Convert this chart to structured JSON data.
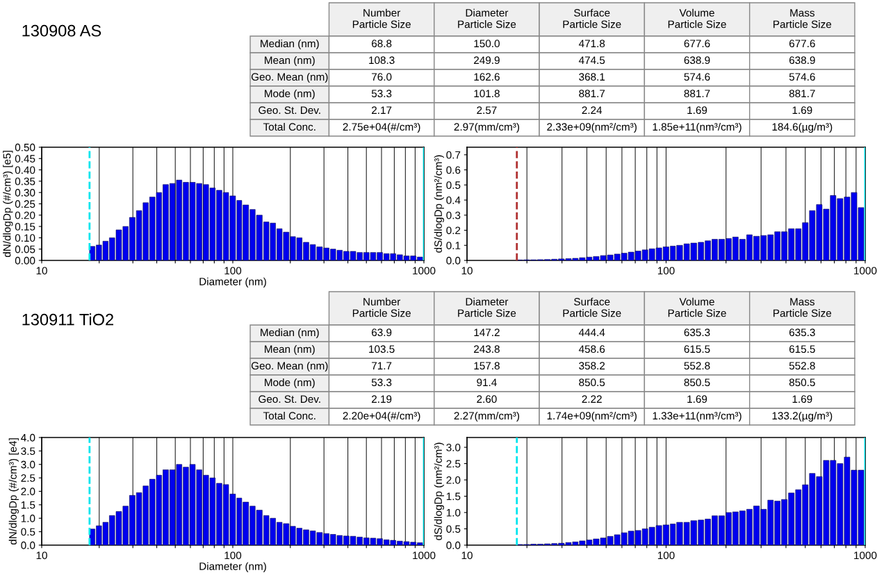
{
  "chart_data": [
    {
      "type": "other",
      "title": "130908 AS",
      "categories": [
        "Number\nParticle Size",
        "Diameter\nParticle Size",
        "Surface\nParticle Size",
        "Volume\nParticle Size",
        "Mass\nParticle Size"
      ],
      "y_categories": [
        "Median (nm)",
        "Mean (nm)",
        "Geo. Mean (nm)",
        "Mode (nm)",
        "Geo. St. Dev.",
        "Total Conc."
      ],
      "cell_labels": [
        [
          "68.8",
          "150.0",
          "471.8",
          "677.6",
          "677.6"
        ],
        [
          "108.3",
          "249.9",
          "474.5",
          "638.9",
          "638.9"
        ],
        [
          "76.0",
          "162.6",
          "368.1",
          "574.6",
          "574.6"
        ],
        [
          "53.3",
          "101.8",
          "881.7",
          "881.7",
          "881.7"
        ],
        [
          "2.17",
          "2.57",
          "2.24",
          "1.69",
          "1.69"
        ],
        [
          "2.75e+04(#/cm³)",
          "2.97(mm/cm³)",
          "2.33e+09(nm²/cm³)",
          "1.85e+11(nm³/cm³)",
          "184.6(µg/m³)"
        ]
      ]
    },
    {
      "type": "histogram",
      "xlabel": "Diameter (nm)",
      "ylabel": "dN/dlogDp (#/cm³) [e5]",
      "log": "x",
      "color": "#0000ee",
      "grid": "x",
      "bins": [
        17.8,
        19.3,
        20.9,
        22.6,
        24.5,
        26.6,
        28.8,
        31.3,
        33.9,
        36.7,
        39.8,
        43.1,
        46.8,
        50.7,
        55.0,
        59.6,
        64.6,
        70.0,
        75.9,
        82.2,
        89.1,
        96.6,
        105,
        113,
        123,
        133,
        145,
        157,
        170,
        184,
        200,
        216,
        234,
        254,
        275,
        299,
        324,
        351,
        380,
        412,
        447,
        484,
        525,
        569,
        617,
        668,
        724,
        785,
        851,
        923,
        1000
      ],
      "values": [
        0.062,
        0.068,
        0.085,
        0.1,
        0.135,
        0.15,
        0.19,
        0.22,
        0.255,
        0.28,
        0.3,
        0.335,
        0.34,
        0.355,
        0.345,
        0.345,
        0.34,
        0.335,
        0.32,
        0.31,
        0.3,
        0.285,
        0.265,
        0.245,
        0.225,
        0.2,
        0.17,
        0.165,
        0.14,
        0.125,
        0.105,
        0.1,
        0.08,
        0.07,
        0.06,
        0.055,
        0.05,
        0.045,
        0.04,
        0.04,
        0.035,
        0.035,
        0.035,
        0.035,
        0.03,
        0.03,
        0.025,
        0.02,
        0.02,
        0.015
      ],
      "xlim": [
        10,
        1000
      ],
      "xticks": [
        10,
        {
          "value": 20,
          "label": null
        },
        {
          "value": 30,
          "label": null
        },
        {
          "value": 40,
          "label": null
        },
        {
          "value": 50,
          "label": null
        },
        {
          "value": 60,
          "label": null
        },
        {
          "value": 70,
          "label": null
        },
        {
          "value": 80,
          "label": null
        },
        {
          "value": 90,
          "label": null
        },
        100,
        {
          "value": 200,
          "label": null
        },
        {
          "value": 300,
          "label": null
        },
        {
          "value": 400,
          "label": null
        },
        {
          "value": 500,
          "label": null
        },
        {
          "value": 600,
          "label": null
        },
        {
          "value": 700,
          "label": null
        },
        {
          "value": 800,
          "label": null
        },
        {
          "value": 900,
          "label": null
        },
        1000
      ],
      "ylim": [
        0,
        0.5
      ],
      "yticks": [
        {
          "value": 0,
          "label": "0.00"
        },
        0.05,
        {
          "value": 0.1,
          "label": "0.10"
        },
        0.15,
        {
          "value": 0.2,
          "label": "0.20"
        },
        0.25,
        {
          "value": 0.3,
          "label": "0.30"
        },
        0.35,
        {
          "value": 0.4,
          "label": "0.40"
        },
        0.45,
        {
          "value": 0.5,
          "label": "0.50"
        }
      ],
      "ref_lines": [
        {
          "axis": "x",
          "value": 17.8,
          "color": "#00e5ee",
          "line_style": "dashed"
        },
        {
          "axis": "x",
          "value": 1000,
          "color": "#00e5ee",
          "line_style": "solid"
        }
      ]
    },
    {
      "type": "histogram",
      "ylabel": "dS/dlogDp (nm²/cm³)",
      "log": "x",
      "color": "#0000ee",
      "grid": "x",
      "bins": [
        17.8,
        19.3,
        20.9,
        22.6,
        24.5,
        26.6,
        28.8,
        31.3,
        33.9,
        36.7,
        39.8,
        43.1,
        46.8,
        50.7,
        55.0,
        59.6,
        64.6,
        70.0,
        75.9,
        82.2,
        89.1,
        96.6,
        105,
        113,
        123,
        133,
        145,
        157,
        170,
        184,
        200,
        216,
        234,
        254,
        275,
        299,
        324,
        351,
        380,
        412,
        447,
        484,
        525,
        569,
        617,
        668,
        724,
        785,
        851,
        923,
        1000
      ],
      "values": [
        0.003,
        0.004,
        0.004,
        0.005,
        0.006,
        0.008,
        0.01,
        0.012,
        0.014,
        0.018,
        0.022,
        0.026,
        0.032,
        0.036,
        0.042,
        0.048,
        0.055,
        0.062,
        0.07,
        0.077,
        0.083,
        0.09,
        0.095,
        0.1,
        0.11,
        0.115,
        0.12,
        0.13,
        0.14,
        0.14,
        0.145,
        0.155,
        0.14,
        0.17,
        0.16,
        0.165,
        0.17,
        0.19,
        0.19,
        0.21,
        0.21,
        0.25,
        0.33,
        0.37,
        0.34,
        0.43,
        0.41,
        0.42,
        0.45,
        0.35
      ],
      "xlim": [
        10,
        1000
      ],
      "xticks": [
        10,
        {
          "value": 20,
          "label": null
        },
        {
          "value": 30,
          "label": null
        },
        {
          "value": 40,
          "label": null
        },
        {
          "value": 50,
          "label": null
        },
        {
          "value": 60,
          "label": null
        },
        {
          "value": 70,
          "label": null
        },
        {
          "value": 80,
          "label": null
        },
        {
          "value": 90,
          "label": null
        },
        100,
        {
          "value": 200,
          "label": null
        },
        {
          "value": 300,
          "label": null
        },
        {
          "value": 400,
          "label": null
        },
        {
          "value": 500,
          "label": null
        },
        {
          "value": 600,
          "label": null
        },
        {
          "value": 700,
          "label": null
        },
        {
          "value": 800,
          "label": null
        },
        {
          "value": 900,
          "label": null
        },
        1000
      ],
      "ylim": [
        0,
        0.75
      ],
      "yticks": [
        {
          "value": 0,
          "label": "0.0"
        },
        0.1,
        0.2,
        0.3,
        0.4,
        0.5,
        0.6,
        0.7
      ],
      "ref_lines": [
        {
          "axis": "x",
          "value": 17.8,
          "color": "#b03030",
          "line_style": "dashed"
        },
        {
          "axis": "x",
          "value": 1000,
          "color": "#00e5ee",
          "line_style": "solid"
        }
      ]
    },
    {
      "type": "other",
      "title": "130911 TiO2",
      "categories": [
        "Number\nParticle Size",
        "Diameter\nParticle Size",
        "Surface\nParticle Size",
        "Volume\nParticle Size",
        "Mass\nParticle Size"
      ],
      "y_categories": [
        "Median (nm)",
        "Mean (nm)",
        "Geo. Mean (nm)",
        "Mode (nm)",
        "Geo. St. Dev.",
        "Total Conc."
      ],
      "cell_labels": [
        [
          "63.9",
          "147.2",
          "444.4",
          "635.3",
          "635.3"
        ],
        [
          "103.5",
          "243.8",
          "458.6",
          "615.5",
          "615.5"
        ],
        [
          "71.7",
          "157.8",
          "358.2",
          "552.8",
          "552.8"
        ],
        [
          "53.3",
          "91.4",
          "850.5",
          "850.5",
          "850.5"
        ],
        [
          "2.19",
          "2.60",
          "2.22",
          "1.69",
          "1.69"
        ],
        [
          "2.20e+04(#/cm³)",
          "2.27(mm/cm³)",
          "1.74e+09(nm²/cm³)",
          "1.33e+11(nm³/cm³)",
          "133.2(µg/m³)"
        ]
      ]
    },
    {
      "type": "histogram",
      "xlabel": "Diameter (nm)",
      "ylabel": "dN/dlogDp (#/cm³) [e4]",
      "log": "x",
      "color": "#0000ee",
      "grid": "x",
      "bins": [
        17.8,
        19.3,
        20.9,
        22.6,
        24.5,
        26.6,
        28.8,
        31.3,
        33.9,
        36.7,
        39.8,
        43.1,
        46.8,
        50.7,
        55.0,
        59.6,
        64.6,
        70.0,
        75.9,
        82.2,
        89.1,
        96.6,
        105,
        113,
        123,
        133,
        145,
        157,
        170,
        184,
        200,
        216,
        234,
        254,
        275,
        299,
        324,
        351,
        380,
        412,
        447,
        484,
        525,
        569,
        617,
        668,
        724,
        785,
        851,
        923,
        1000
      ],
      "values": [
        0.6,
        0.72,
        0.85,
        1.1,
        1.25,
        1.45,
        1.85,
        1.95,
        2.2,
        2.45,
        2.6,
        2.8,
        2.8,
        3.0,
        2.9,
        3.0,
        2.8,
        2.6,
        2.5,
        2.3,
        2.25,
        1.9,
        1.75,
        1.6,
        1.45,
        1.3,
        1.1,
        1.0,
        0.85,
        0.8,
        0.7,
        0.63,
        0.57,
        0.53,
        0.47,
        0.43,
        0.4,
        0.36,
        0.34,
        0.33,
        0.3,
        0.27,
        0.26,
        0.24,
        0.2,
        0.18,
        0.15,
        0.13,
        0.11,
        0.09
      ],
      "xlim": [
        10,
        1000
      ],
      "xticks": [
        10,
        {
          "value": 20,
          "label": null
        },
        {
          "value": 30,
          "label": null
        },
        {
          "value": 40,
          "label": null
        },
        {
          "value": 50,
          "label": null
        },
        {
          "value": 60,
          "label": null
        },
        {
          "value": 70,
          "label": null
        },
        {
          "value": 80,
          "label": null
        },
        {
          "value": 90,
          "label": null
        },
        100,
        {
          "value": 200,
          "label": null
        },
        {
          "value": 300,
          "label": null
        },
        {
          "value": 400,
          "label": null
        },
        {
          "value": 500,
          "label": null
        },
        {
          "value": 600,
          "label": null
        },
        {
          "value": 700,
          "label": null
        },
        {
          "value": 800,
          "label": null
        },
        {
          "value": 900,
          "label": null
        },
        1000
      ],
      "ylim": [
        0,
        4.0
      ],
      "yticks": [
        {
          "value": 0,
          "label": "0.0"
        },
        0.5,
        {
          "value": 1,
          "label": "1.0"
        },
        1.5,
        {
          "value": 2,
          "label": "2.0"
        },
        2.5,
        {
          "value": 3,
          "label": "3.0"
        },
        3.5,
        {
          "value": 4,
          "label": "4.0"
        }
      ],
      "ref_lines": [
        {
          "axis": "x",
          "value": 17.8,
          "color": "#00e5ee",
          "line_style": "dashed"
        },
        {
          "axis": "x",
          "value": 1000,
          "color": "#00e5ee",
          "line_style": "solid"
        }
      ]
    },
    {
      "type": "histogram",
      "ylabel": "dS/dlogDp (nm²/cm³)",
      "log": "x",
      "color": "#0000ee",
      "grid": "x",
      "bins": [
        17.8,
        19.3,
        20.9,
        22.6,
        24.5,
        26.6,
        28.8,
        31.3,
        33.9,
        36.7,
        39.8,
        43.1,
        46.8,
        50.7,
        55.0,
        59.6,
        64.6,
        70.0,
        75.9,
        82.2,
        89.1,
        96.6,
        105,
        113,
        123,
        133,
        145,
        157,
        170,
        184,
        200,
        216,
        234,
        254,
        275,
        299,
        324,
        351,
        380,
        412,
        447,
        484,
        525,
        569,
        617,
        668,
        724,
        785,
        851,
        923,
        1000
      ],
      "values": [
        0.02,
        0.02,
        0.03,
        0.03,
        0.04,
        0.05,
        0.06,
        0.08,
        0.1,
        0.13,
        0.16,
        0.19,
        0.22,
        0.27,
        0.32,
        0.38,
        0.43,
        0.45,
        0.5,
        0.55,
        0.6,
        0.62,
        0.65,
        0.7,
        0.7,
        0.75,
        0.77,
        0.8,
        0.9,
        0.9,
        1.0,
        1.02,
        1.05,
        1.1,
        1.2,
        1.1,
        1.38,
        1.35,
        1.4,
        1.6,
        1.7,
        1.85,
        2.2,
        2.1,
        2.6,
        2.6,
        2.5,
        2.7,
        2.3,
        2.3
      ],
      "xlim": [
        10,
        1000
      ],
      "xticks": [
        10,
        {
          "value": 20,
          "label": null
        },
        {
          "value": 30,
          "label": null
        },
        {
          "value": 40,
          "label": null
        },
        {
          "value": 50,
          "label": null
        },
        {
          "value": 60,
          "label": null
        },
        {
          "value": 70,
          "label": null
        },
        {
          "value": 80,
          "label": null
        },
        {
          "value": 90,
          "label": null
        },
        100,
        {
          "value": 200,
          "label": null
        },
        {
          "value": 300,
          "label": null
        },
        {
          "value": 400,
          "label": null
        },
        {
          "value": 500,
          "label": null
        },
        {
          "value": 600,
          "label": null
        },
        {
          "value": 700,
          "label": null
        },
        {
          "value": 800,
          "label": null
        },
        {
          "value": 900,
          "label": null
        },
        1000
      ],
      "ylim": [
        0,
        3.3
      ],
      "yticks": [
        {
          "value": 0,
          "label": "0.0"
        },
        0.5,
        {
          "value": 1,
          "label": "1.0"
        },
        1.5,
        {
          "value": 2,
          "label": "2.0"
        },
        2.5,
        {
          "value": 3,
          "label": "3.0"
        }
      ],
      "ref_lines": [
        {
          "axis": "x",
          "value": 17.8,
          "color": "#00e5ee",
          "line_style": "dashed"
        },
        {
          "axis": "x",
          "value": 1000,
          "color": "#00e5ee",
          "line_style": "solid"
        }
      ]
    }
  ]
}
